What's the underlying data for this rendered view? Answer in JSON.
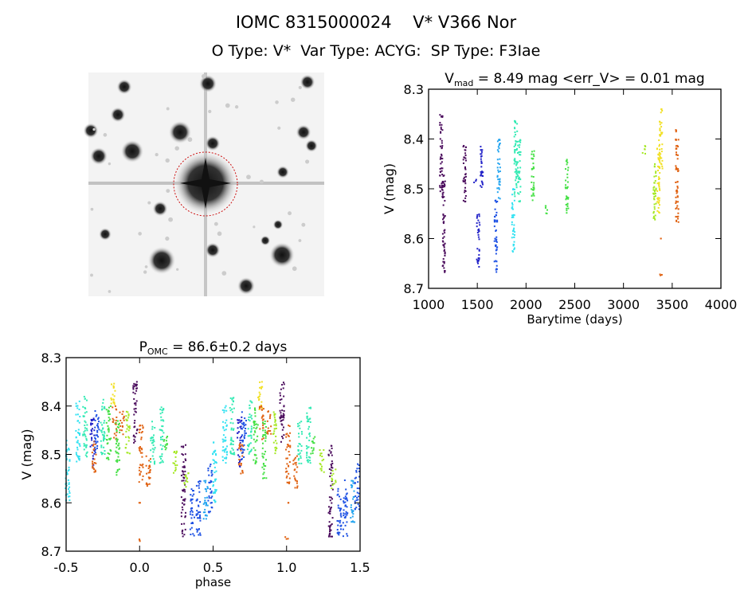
{
  "header": {
    "title": "IOMC 8315000024    V* V366 Nor",
    "subtitle": "O Type: V*  Var Type: ACYG:  SP Type: F3Iae"
  },
  "colors": {
    "purple": "#4a0b5c",
    "navy": "#2222c8",
    "blue": "#1c50e4",
    "lightblue": "#22a4f0",
    "cyan": "#34e2f2",
    "teal": "#34eab4",
    "green": "#44e044",
    "yellowgreen": "#a4e822",
    "yellow": "#f2e024",
    "orange": "#e06212",
    "aperture": "#cc1111"
  },
  "chart_data": [
    {
      "type": "scatter",
      "title_main": "V",
      "title_sub": "mad",
      "title_rest": " = 8.49 mag <err_V> = 0.01 mag",
      "xlabel": "Barytime (days)",
      "ylabel": "V (mag)",
      "xlim": [
        1000,
        4000
      ],
      "ylim": [
        8.7,
        8.3
      ],
      "y_inverted": true,
      "xticks": [
        "1000",
        "1500",
        "2000",
        "2500",
        "3000",
        "3500",
        "4000"
      ],
      "yticks": [
        "8.3",
        "8.4",
        "8.5",
        "8.6",
        "8.7"
      ],
      "segments": [
        {
          "x": 1130,
          "v": [
            8.35,
            8.51
          ],
          "c": "purple"
        },
        {
          "x": 1155,
          "v": [
            8.47,
            8.67
          ],
          "c": "purple"
        },
        {
          "x": 1370,
          "v": [
            8.41,
            8.53
          ],
          "c": "purple"
        },
        {
          "x": 1480,
          "v": [
            8.48,
            8.49
          ],
          "c": "navy"
        },
        {
          "x": 1510,
          "v": [
            8.55,
            8.66
          ],
          "c": "navy"
        },
        {
          "x": 1545,
          "v": [
            8.41,
            8.51
          ],
          "c": "navy"
        },
        {
          "x": 1690,
          "v": [
            8.52,
            8.67
          ],
          "c": "blue"
        },
        {
          "x": 1720,
          "v": [
            8.4,
            8.52
          ],
          "c": "lightblue"
        },
        {
          "x": 1870,
          "v": [
            8.5,
            8.63
          ],
          "c": "cyan"
        },
        {
          "x": 1895,
          "v": [
            8.36,
            8.52
          ],
          "c": "teal"
        },
        {
          "x": 1930,
          "v": [
            8.4,
            8.53
          ],
          "c": "teal"
        },
        {
          "x": 2070,
          "v": [
            8.42,
            8.53
          ],
          "c": "green"
        },
        {
          "x": 2215,
          "v": [
            8.53,
            8.55
          ],
          "c": "green"
        },
        {
          "x": 2420,
          "v": [
            8.44,
            8.55
          ],
          "c": "green"
        },
        {
          "x": 3210,
          "v": [
            8.41,
            8.43
          ],
          "c": "yellowgreen"
        },
        {
          "x": 3320,
          "v": [
            8.45,
            8.57
          ],
          "c": "yellowgreen"
        },
        {
          "x": 3360,
          "v": [
            8.4,
            8.55
          ],
          "c": "yellow"
        },
        {
          "x": 3385,
          "v": [
            8.34,
            8.46
          ],
          "c": "yellow"
        },
        {
          "x": 3385,
          "v": [
            8.6,
            8.6
          ],
          "c": "orange"
        },
        {
          "x": 3385,
          "v": [
            8.67,
            8.68
          ],
          "c": "orange"
        },
        {
          "x": 3550,
          "v": [
            8.38,
            8.57
          ],
          "c": "orange"
        }
      ]
    },
    {
      "type": "scatter",
      "title_main": "P",
      "title_sub": "OMC",
      "title_rest": " = 86.6±0.2 days",
      "xlabel": "phase",
      "ylabel": "V (mag)",
      "xlim": [
        -0.5,
        1.5
      ],
      "ylim": [
        8.7,
        8.3
      ],
      "y_inverted": true,
      "xticks": [
        "-0.5",
        "0.0",
        "0.5",
        "1.0",
        "1.5"
      ],
      "yticks": [
        "8.3",
        "8.4",
        "8.5",
        "8.6",
        "8.7"
      ],
      "segments": [
        {
          "x": 0.51,
          "v": [
            8.47,
            8.6
          ],
          "c": "cyan"
        },
        {
          "x": 0.58,
          "v": [
            8.39,
            8.52
          ],
          "c": "cyan"
        },
        {
          "x": 0.63,
          "v": [
            8.38,
            8.51
          ],
          "c": "teal"
        },
        {
          "x": 0.68,
          "v": [
            8.42,
            8.53
          ],
          "c": "navy"
        },
        {
          "x": 0.69,
          "v": [
            8.47,
            8.54
          ],
          "c": "orange"
        },
        {
          "x": 0.71,
          "v": [
            8.41,
            8.51
          ],
          "c": "blue"
        },
        {
          "x": 0.75,
          "v": [
            8.38,
            8.5
          ],
          "c": "teal"
        },
        {
          "x": 0.79,
          "v": [
            8.4,
            8.52
          ],
          "c": "green"
        },
        {
          "x": 0.82,
          "v": [
            8.35,
            8.41
          ],
          "c": "yellow"
        },
        {
          "x": 0.83,
          "v": [
            8.4,
            8.47
          ],
          "c": "orange"
        },
        {
          "x": 0.85,
          "v": [
            8.43,
            8.55
          ],
          "c": "green"
        },
        {
          "x": 0.88,
          "v": [
            8.41,
            8.46
          ],
          "c": "orange"
        },
        {
          "x": 0.92,
          "v": [
            8.41,
            8.5
          ],
          "c": "yellowgreen"
        },
        {
          "x": 0.97,
          "v": [
            8.35,
            8.48
          ],
          "c": "purple"
        },
        {
          "x": 0.01,
          "v": [
            8.44,
            8.56
          ],
          "c": "orange"
        },
        {
          "x": 0.0,
          "v": [
            8.6,
            8.6
          ],
          "c": "orange"
        },
        {
          "x": 0.0,
          "v": [
            8.67,
            8.68
          ],
          "c": "orange"
        },
        {
          "x": 0.06,
          "v": [
            8.5,
            8.57
          ],
          "c": "orange"
        },
        {
          "x": 0.09,
          "v": [
            8.43,
            8.52
          ],
          "c": "teal"
        },
        {
          "x": 0.15,
          "v": [
            8.4,
            8.52
          ],
          "c": "teal"
        },
        {
          "x": 0.18,
          "v": [
            8.46,
            8.5
          ],
          "c": "green"
        },
        {
          "x": 0.24,
          "v": [
            8.49,
            8.54
          ],
          "c": "yellowgreen"
        },
        {
          "x": 0.3,
          "v": [
            8.48,
            8.67
          ],
          "c": "purple"
        },
        {
          "x": 0.32,
          "v": [
            8.53,
            8.57
          ],
          "c": "yellowgreen"
        },
        {
          "x": 0.36,
          "v": [
            8.57,
            8.67
          ],
          "c": "blue"
        },
        {
          "x": 0.4,
          "v": [
            8.55,
            8.67
          ],
          "c": "blue"
        },
        {
          "x": 0.45,
          "v": [
            8.55,
            8.64
          ],
          "c": "lightblue"
        },
        {
          "x": 0.48,
          "v": [
            8.52,
            8.62
          ],
          "c": "blue"
        }
      ]
    }
  ]
}
